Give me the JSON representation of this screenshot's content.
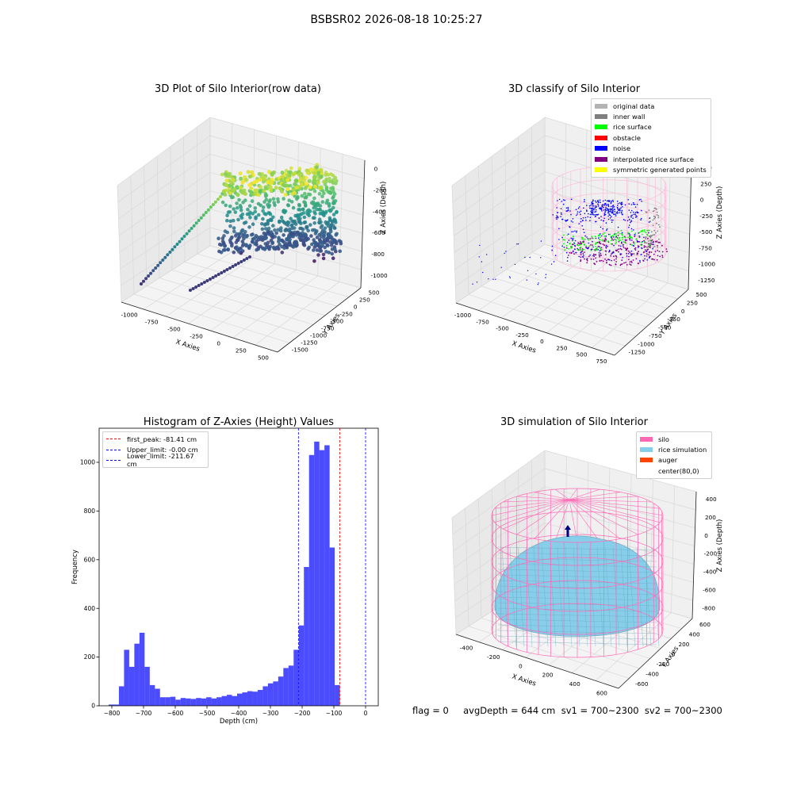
{
  "figure": {
    "suptitle": "BSBSR02 2026-08-18 10:25:27",
    "footer": "flag = 0     avgDepth = 644 cm  sv1 = 700~2300  sv2 = 700~2300"
  },
  "panel_raw": {
    "title": "3D Plot of Silo Interior(row data)",
    "xlabel": "X Axies",
    "ylabel": "Y Axies",
    "zlabel": "Z Axies (Depth)",
    "x_ticks": [
      "-1000",
      "-750",
      "-500",
      "-250",
      "0",
      "250",
      "500"
    ],
    "y_ticks": [
      "500",
      "250",
      "0",
      "-250",
      "-500",
      "-750",
      "-1000",
      "-1250",
      "-1500"
    ],
    "z_ticks": [
      "0",
      "-200",
      "-400",
      "-600",
      "-800",
      "-1000"
    ],
    "colormap": "viridis"
  },
  "panel_classify": {
    "title": "3D classify of Silo Interior",
    "xlabel": "X Axies",
    "ylabel": "Y Axies",
    "zlabel": "Z Axies (Depth)",
    "x_ticks": [
      "-1000",
      "-750",
      "-500",
      "-250",
      "0",
      "250",
      "500",
      "750"
    ],
    "y_ticks": [
      "500",
      "250",
      "0",
      "-250",
      "-500",
      "-750",
      "-1000",
      "-1250"
    ],
    "z_ticks": [
      "500",
      "250",
      "0",
      "-250",
      "-500",
      "-750",
      "-1000",
      "-1250"
    ],
    "legend": [
      {
        "label": "original data",
        "color": "#b3b3b3"
      },
      {
        "label": "inner wall",
        "color": "#808080"
      },
      {
        "label": "rice surface",
        "color": "#00ff00"
      },
      {
        "label": "obstacle",
        "color": "#ff0000"
      },
      {
        "label": "noise",
        "color": "#0000ff"
      },
      {
        "label": "interpolated rice surface",
        "color": "#800080"
      },
      {
        "label": "symmetric generated points",
        "color": "#ffff00"
      }
    ]
  },
  "panel_sim": {
    "title": "3D simulation of Silo Interior",
    "xlabel": "X Axies",
    "ylabel": "Y Axies",
    "zlabel": "Z Axies (Depth)",
    "x_ticks": [
      "-400",
      "-200",
      "0",
      "200",
      "400",
      "600"
    ],
    "y_ticks": [
      "600",
      "400",
      "200",
      "0",
      "-200",
      "-400",
      "-600"
    ],
    "z_ticks": [
      "400",
      "200",
      "0",
      "-200",
      "-400",
      "-600",
      "-800"
    ],
    "legend": [
      {
        "label": "silo",
        "color": "#ff69b4"
      },
      {
        "label": "rice simulation",
        "color": "#87ceeb"
      },
      {
        "label": "auger",
        "color": "#ff4500"
      },
      {
        "label": "center(80,0)",
        "color": "#ffffff"
      }
    ],
    "colors": {
      "silo": "#ff69b4",
      "rice": "#87ceeb",
      "auger": "#000080"
    }
  },
  "chart_data": [
    {
      "type": "histogram",
      "title": "Histogram of Z-Axies (Height) Values",
      "xlabel": "Depth (cm)",
      "ylabel": "Frequency",
      "xlim": [
        -840,
        40
      ],
      "ylim": [
        0,
        1140
      ],
      "x_ticks": [
        -800,
        -700,
        -600,
        -500,
        -400,
        -300,
        -200,
        -100,
        0
      ],
      "y_ticks": [
        0,
        200,
        400,
        600,
        800,
        1000
      ],
      "bin_width": 16.2,
      "bins_start": -810,
      "counts": [
        5,
        5,
        80,
        230,
        160,
        255,
        300,
        160,
        85,
        70,
        35,
        35,
        37,
        25,
        32,
        30,
        28,
        32,
        30,
        35,
        30,
        35,
        40,
        45,
        40,
        50,
        55,
        60,
        58,
        65,
        80,
        92,
        100,
        120,
        155,
        165,
        230,
        330,
        570,
        1030,
        1085,
        1050,
        1070,
        650,
        85
      ],
      "bar_color": "#0000ff",
      "vlines": [
        {
          "label": "first_peak: -81.41 cm",
          "value": -81.41,
          "color": "#ff0000"
        },
        {
          "label": "Upper_limit: -0.00 cm",
          "value": -0.0,
          "color": "#0000ff"
        },
        {
          "label": "Lower_limit: -211.67 cm",
          "value": -211.67,
          "color": "#0000ff"
        }
      ],
      "legend_position": "upper-left",
      "grid": false
    }
  ]
}
